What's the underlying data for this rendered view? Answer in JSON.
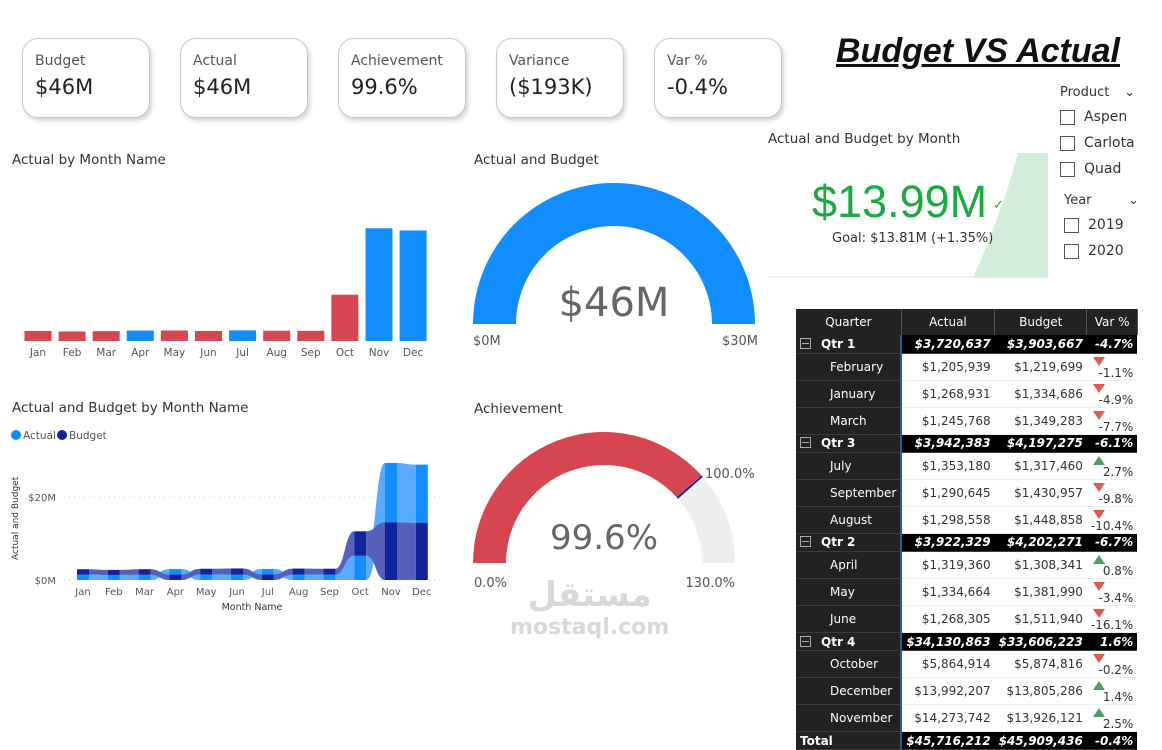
{
  "kpis": [
    {
      "label": "Budget",
      "value": "$46M"
    },
    {
      "label": "Actual",
      "value": "$46M"
    },
    {
      "label": "Achievement",
      "value": "99.6%"
    },
    {
      "label": "Variance",
      "value": "($193K)"
    },
    {
      "label": "Var %",
      "value": "-0.4%"
    }
  ],
  "page_title": "Budget VS Actual",
  "slicers": {
    "product": {
      "title": "Product",
      "options": [
        "Aspen",
        "Carlota",
        "Quad"
      ]
    },
    "year": {
      "title": "Year",
      "options": [
        "2019",
        "2020"
      ]
    }
  },
  "kpi_visual": {
    "title": "Actual and Budget by Month",
    "value": "$13.99M",
    "goal": "Goal: $13.81M (+1.35%)",
    "color": "#1aab40"
  },
  "chart_data": [
    {
      "type": "bar",
      "title": "Actual by Month Name",
      "categories": [
        "Jan",
        "Feb",
        "Mar",
        "Apr",
        "May",
        "Jun",
        "Jul",
        "Aug",
        "Sep",
        "Oct",
        "Nov",
        "Dec"
      ],
      "values": [
        1.27,
        1.21,
        1.25,
        1.32,
        1.33,
        1.27,
        1.35,
        1.3,
        1.29,
        5.86,
        14.27,
        13.99
      ],
      "above_budget": [
        false,
        false,
        false,
        true,
        false,
        false,
        true,
        false,
        false,
        false,
        true,
        true
      ],
      "colors": {
        "above": "#118DFF",
        "below": "#D64550"
      }
    },
    {
      "type": "gauge",
      "title": "Actual and Budget",
      "value_label": "$46M",
      "value": 46,
      "min": 0,
      "max": 30,
      "min_label": "$0M",
      "max_label": "$30M",
      "color": "#118DFF"
    },
    {
      "type": "ribbon",
      "title": "Actual and Budget by Month Name",
      "xlabel": "Month Name",
      "ylabel": "Actual and Budget",
      "yticks": [
        "$0M",
        "$20M"
      ],
      "ytick_values": [
        0,
        20
      ],
      "legend": [
        "Actual",
        "Budget"
      ],
      "categories": [
        "Jan",
        "Feb",
        "Mar",
        "Apr",
        "May",
        "Jun",
        "Jul",
        "Aug",
        "Sep",
        "Oct",
        "Nov",
        "Dec"
      ],
      "series": [
        {
          "name": "Actual",
          "values": [
            1.27,
            1.21,
            1.25,
            1.32,
            1.33,
            1.27,
            1.35,
            1.3,
            1.29,
            5.86,
            14.27,
            13.99
          ],
          "color": "#118DFF"
        },
        {
          "name": "Budget",
          "values": [
            1.33,
            1.22,
            1.35,
            1.31,
            1.38,
            1.51,
            1.32,
            1.45,
            1.43,
            5.87,
            13.93,
            13.81
          ],
          "color": "#12239E"
        }
      ]
    },
    {
      "type": "gauge",
      "title": "Achievement",
      "value_label": "99.6%",
      "value": 99.6,
      "min": 0,
      "max": 130,
      "target": 100,
      "min_label": "0.0%",
      "max_label": "130.0%",
      "target_label": "100.0%",
      "color": "#D64550"
    }
  ],
  "table": {
    "headers": [
      "Quarter",
      "Actual",
      "Budget",
      "Var %"
    ],
    "groups": [
      {
        "name": "Qtr 1",
        "actual": "$3,720,637",
        "budget": "$3,903,667",
        "var": "-4.7%",
        "rows": [
          [
            "February",
            "$1,205,939",
            "$1,219,699",
            "down",
            "-1.1%"
          ],
          [
            "January",
            "$1,268,931",
            "$1,334,686",
            "down",
            "-4.9%"
          ],
          [
            "March",
            "$1,245,768",
            "$1,349,283",
            "down",
            "-7.7%"
          ]
        ]
      },
      {
        "name": "Qtr 3",
        "actual": "$3,942,383",
        "budget": "$4,197,275",
        "var": "-6.1%",
        "rows": [
          [
            "July",
            "$1,353,180",
            "$1,317,460",
            "up",
            "2.7%"
          ],
          [
            "September",
            "$1,290,645",
            "$1,430,957",
            "down",
            "-9.8%"
          ],
          [
            "August",
            "$1,298,558",
            "$1,448,858",
            "down",
            "-10.4%"
          ]
        ]
      },
      {
        "name": "Qtr 2",
        "actual": "$3,922,329",
        "budget": "$4,202,271",
        "var": "-6.7%",
        "rows": [
          [
            "April",
            "$1,319,360",
            "$1,308,341",
            "up",
            "0.8%"
          ],
          [
            "May",
            "$1,334,664",
            "$1,381,990",
            "down",
            "-3.4%"
          ],
          [
            "June",
            "$1,268,305",
            "$1,511,940",
            "down",
            "-16.1%"
          ]
        ]
      },
      {
        "name": "Qtr 4",
        "actual": "$34,130,863",
        "budget": "$33,606,223",
        "var": "1.6%",
        "rows": [
          [
            "October",
            "$5,864,914",
            "$5,874,816",
            "down",
            "-0.2%"
          ],
          [
            "December",
            "$13,992,207",
            "$13,805,286",
            "up",
            "1.4%"
          ],
          [
            "November",
            "$14,273,742",
            "$13,926,121",
            "up",
            "2.5%"
          ]
        ]
      }
    ],
    "total": {
      "label": "Total",
      "actual": "$45,716,212",
      "budget": "$45,909,436",
      "var": "-0.4%"
    }
  },
  "watermark": {
    "arabic": "مستقل",
    "latin": "mostaql.com"
  }
}
